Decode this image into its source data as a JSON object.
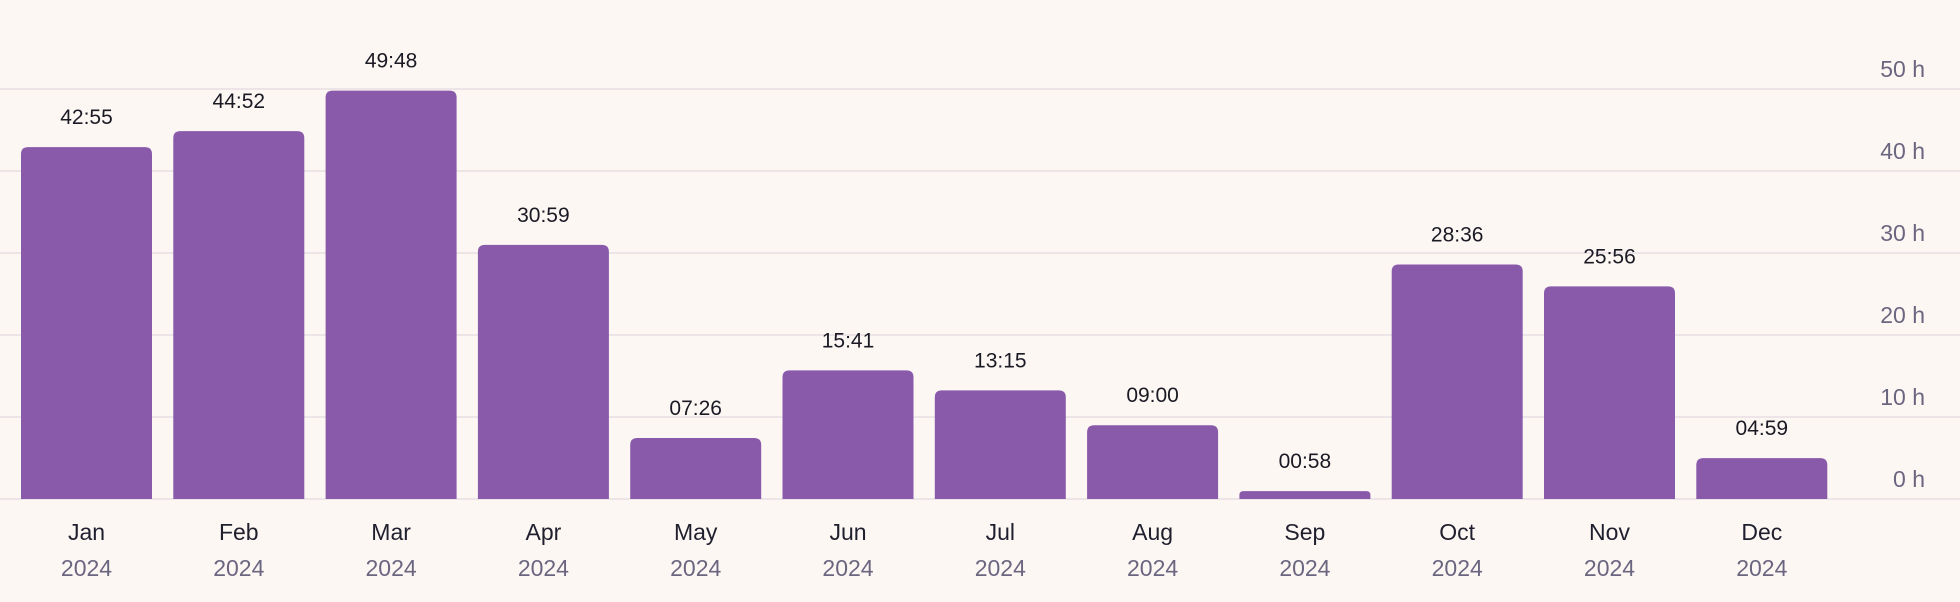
{
  "chart_data": {
    "type": "bar",
    "categories": [
      "Jan",
      "Feb",
      "Mar",
      "Apr",
      "May",
      "Jun",
      "Jul",
      "Aug",
      "Sep",
      "Oct",
      "Nov",
      "Dec"
    ],
    "category_sublabels": [
      "2024",
      "2024",
      "2024",
      "2024",
      "2024",
      "2024",
      "2024",
      "2024",
      "2024",
      "2024",
      "2024",
      "2024"
    ],
    "values": [
      42.9167,
      44.8667,
      49.8,
      30.9833,
      7.4333,
      15.6833,
      13.25,
      9.0,
      0.9667,
      28.6,
      25.9333,
      4.9833
    ],
    "value_labels": [
      "42:55",
      "44:52",
      "49:48",
      "30:59",
      "07:26",
      "15:41",
      "13:15",
      "09:00",
      "00:58",
      "28:36",
      "25:56",
      "04:59"
    ],
    "y_ticks": [
      0,
      10,
      20,
      30,
      40,
      50
    ],
    "y_tick_labels": [
      "0 h",
      "10 h",
      "20 h",
      "30 h",
      "40 h",
      "50 h"
    ],
    "ylim": [
      0,
      50
    ],
    "y_axis_position": "right",
    "grid": true,
    "colors": {
      "bar": "#8a5aaa",
      "grid": "#e6dde1",
      "value_label": "#1a1a24",
      "month_label": "#1f1f2e",
      "year_label": "#6b6680",
      "tick_label": "#6b6680",
      "background": "#fdf7f4"
    }
  }
}
